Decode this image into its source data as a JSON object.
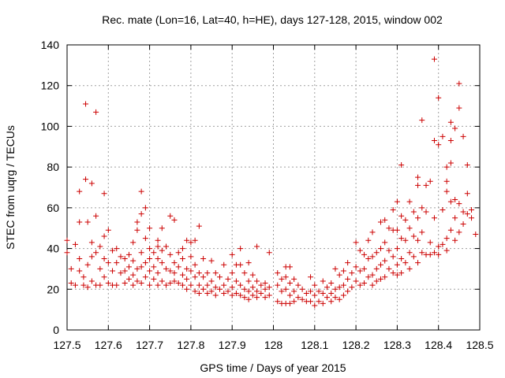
{
  "chart_data": {
    "type": "scatter",
    "title": "Rec. mate (Lon=16, Lat=40, h=HE), days 127-128, 2015, window 002",
    "xlabel": "GPS time / Days of year 2015",
    "ylabel": "STEC from uqrg / TECUs",
    "xlim": [
      127.5,
      128.5
    ],
    "ylim": [
      0,
      140
    ],
    "xticks": [
      127.5,
      127.6,
      127.7,
      127.8,
      127.9,
      128.0,
      128.1,
      128.2,
      128.3,
      128.4,
      128.5
    ],
    "xtick_labels": [
      "127.5",
      "127.6",
      "127.7",
      "127.8",
      "127.9",
      "128",
      "128.1",
      "128.2",
      "128.3",
      "128.4",
      "128.5"
    ],
    "yticks": [
      0,
      20,
      40,
      60,
      80,
      100,
      120,
      140
    ],
    "ytick_labels": [
      "0",
      "20",
      "40",
      "60",
      "80",
      "100",
      "120",
      "140"
    ],
    "grid": true,
    "marker": "+",
    "color": "#cc0000",
    "points": [
      [
        127.5,
        44
      ],
      [
        127.5,
        38
      ],
      [
        127.51,
        23
      ],
      [
        127.51,
        30
      ],
      [
        127.52,
        42
      ],
      [
        127.52,
        22
      ],
      [
        127.53,
        68
      ],
      [
        127.53,
        53
      ],
      [
        127.53,
        35
      ],
      [
        127.53,
        29
      ],
      [
        127.54,
        22
      ],
      [
        127.54,
        26
      ],
      [
        127.545,
        111
      ],
      [
        127.545,
        74
      ],
      [
        127.55,
        53
      ],
      [
        127.55,
        32
      ],
      [
        127.55,
        21
      ],
      [
        127.56,
        72
      ],
      [
        127.56,
        43
      ],
      [
        127.56,
        36
      ],
      [
        127.56,
        24
      ],
      [
        127.57,
        107
      ],
      [
        127.57,
        56
      ],
      [
        127.57,
        38
      ],
      [
        127.57,
        22
      ],
      [
        127.58,
        41
      ],
      [
        127.58,
        30
      ],
      [
        127.58,
        22
      ],
      [
        127.59,
        67
      ],
      [
        127.59,
        46
      ],
      [
        127.59,
        35
      ],
      [
        127.59,
        26
      ],
      [
        127.6,
        49
      ],
      [
        127.6,
        33
      ],
      [
        127.6,
        23
      ],
      [
        127.61,
        39
      ],
      [
        127.61,
        29
      ],
      [
        127.61,
        22
      ],
      [
        127.62,
        40
      ],
      [
        127.62,
        33
      ],
      [
        127.62,
        22
      ],
      [
        127.63,
        36
      ],
      [
        127.63,
        28
      ],
      [
        127.64,
        35
      ],
      [
        127.64,
        29
      ],
      [
        127.64,
        23
      ],
      [
        127.65,
        37
      ],
      [
        127.65,
        31
      ],
      [
        127.65,
        25
      ],
      [
        127.66,
        43
      ],
      [
        127.66,
        34
      ],
      [
        127.66,
        27
      ],
      [
        127.66,
        22
      ],
      [
        127.67,
        53
      ],
      [
        127.67,
        49
      ],
      [
        127.67,
        30
      ],
      [
        127.67,
        24
      ],
      [
        127.68,
        68
      ],
      [
        127.68,
        57
      ],
      [
        127.68,
        38
      ],
      [
        127.68,
        31
      ],
      [
        127.68,
        23
      ],
      [
        127.69,
        60
      ],
      [
        127.69,
        45
      ],
      [
        127.69,
        33
      ],
      [
        127.69,
        26
      ],
      [
        127.7,
        50
      ],
      [
        127.7,
        40
      ],
      [
        127.7,
        35
      ],
      [
        127.7,
        29
      ],
      [
        127.7,
        22
      ],
      [
        127.71,
        38
      ],
      [
        127.71,
        31
      ],
      [
        127.71,
        25
      ],
      [
        127.72,
        44
      ],
      [
        127.72,
        41
      ],
      [
        127.72,
        35
      ],
      [
        127.72,
        28
      ],
      [
        127.72,
        22
      ],
      [
        127.73,
        50
      ],
      [
        127.73,
        39
      ],
      [
        127.73,
        33
      ],
      [
        127.73,
        24
      ],
      [
        127.74,
        41
      ],
      [
        127.74,
        30
      ],
      [
        127.74,
        22
      ],
      [
        127.75,
        56
      ],
      [
        127.75,
        37
      ],
      [
        127.75,
        29
      ],
      [
        127.75,
        23
      ],
      [
        127.76,
        54
      ],
      [
        127.76,
        33
      ],
      [
        127.76,
        28
      ],
      [
        127.76,
        24
      ],
      [
        127.77,
        38
      ],
      [
        127.77,
        31
      ],
      [
        127.77,
        23
      ],
      [
        127.78,
        40
      ],
      [
        127.78,
        35
      ],
      [
        127.78,
        27
      ],
      [
        127.78,
        22
      ],
      [
        127.79,
        44
      ],
      [
        127.79,
        30
      ],
      [
        127.79,
        25
      ],
      [
        127.79,
        20
      ],
      [
        127.8,
        43
      ],
      [
        127.8,
        36
      ],
      [
        127.8,
        29
      ],
      [
        127.8,
        22
      ],
      [
        127.81,
        44
      ],
      [
        127.81,
        32
      ],
      [
        127.81,
        26
      ],
      [
        127.81,
        19
      ],
      [
        127.82,
        51
      ],
      [
        127.82,
        28
      ],
      [
        127.82,
        22
      ],
      [
        127.82,
        18
      ],
      [
        127.83,
        35
      ],
      [
        127.83,
        26
      ],
      [
        127.83,
        20
      ],
      [
        127.84,
        28
      ],
      [
        127.84,
        22
      ],
      [
        127.84,
        18
      ],
      [
        127.85,
        34
      ],
      [
        127.85,
        24
      ],
      [
        127.85,
        19
      ],
      [
        127.86,
        28
      ],
      [
        127.86,
        21
      ],
      [
        127.86,
        17
      ],
      [
        127.87,
        26
      ],
      [
        127.87,
        20
      ],
      [
        127.88,
        32
      ],
      [
        127.88,
        22
      ],
      [
        127.88,
        18
      ],
      [
        127.89,
        25
      ],
      [
        127.89,
        19
      ],
      [
        127.9,
        37
      ],
      [
        127.9,
        28
      ],
      [
        127.9,
        21
      ],
      [
        127.9,
        17
      ],
      [
        127.91,
        32
      ],
      [
        127.91,
        24
      ],
      [
        127.91,
        18
      ],
      [
        127.92,
        40
      ],
      [
        127.92,
        32
      ],
      [
        127.92,
        22
      ],
      [
        127.92,
        17
      ],
      [
        127.93,
        28
      ],
      [
        127.93,
        20
      ],
      [
        127.93,
        16
      ],
      [
        127.94,
        33
      ],
      [
        127.94,
        24
      ],
      [
        127.94,
        19
      ],
      [
        127.94,
        15
      ],
      [
        127.95,
        27
      ],
      [
        127.95,
        21
      ],
      [
        127.95,
        17
      ],
      [
        127.96,
        41
      ],
      [
        127.96,
        24
      ],
      [
        127.96,
        19
      ],
      [
        127.96,
        16
      ],
      [
        127.97,
        22
      ],
      [
        127.97,
        18
      ],
      [
        127.98,
        23
      ],
      [
        127.98,
        20
      ],
      [
        127.98,
        16
      ],
      [
        127.99,
        38
      ],
      [
        127.99,
        21
      ],
      [
        127.99,
        17
      ],
      [
        128.01,
        28
      ],
      [
        128.01,
        22
      ],
      [
        128.01,
        14
      ],
      [
        128.02,
        25
      ],
      [
        128.02,
        19
      ],
      [
        128.02,
        13
      ],
      [
        128.03,
        31
      ],
      [
        128.03,
        26
      ],
      [
        128.03,
        20
      ],
      [
        128.03,
        13
      ],
      [
        128.04,
        31
      ],
      [
        128.04,
        23
      ],
      [
        128.04,
        17
      ],
      [
        128.04,
        13
      ],
      [
        128.05,
        25
      ],
      [
        128.05,
        19
      ],
      [
        128.05,
        14
      ],
      [
        128.06,
        22
      ],
      [
        128.06,
        16
      ],
      [
        128.07,
        20
      ],
      [
        128.07,
        15
      ],
      [
        128.08,
        18
      ],
      [
        128.08,
        14
      ],
      [
        128.09,
        26
      ],
      [
        128.09,
        19
      ],
      [
        128.09,
        14
      ],
      [
        128.1,
        22
      ],
      [
        128.1,
        17
      ],
      [
        128.1,
        12
      ],
      [
        128.11,
        19
      ],
      [
        128.11,
        14
      ],
      [
        128.12,
        24
      ],
      [
        128.12,
        18
      ],
      [
        128.12,
        13
      ],
      [
        128.13,
        21
      ],
      [
        128.13,
        16
      ],
      [
        128.14,
        23
      ],
      [
        128.14,
        18
      ],
      [
        128.14,
        14
      ],
      [
        128.15,
        30
      ],
      [
        128.15,
        20
      ],
      [
        128.15,
        16
      ],
      [
        128.16,
        27
      ],
      [
        128.16,
        21
      ],
      [
        128.16,
        15
      ],
      [
        128.17,
        29
      ],
      [
        128.17,
        22
      ],
      [
        128.17,
        17
      ],
      [
        128.18,
        33
      ],
      [
        128.18,
        25
      ],
      [
        128.18,
        19
      ],
      [
        128.19,
        28
      ],
      [
        128.19,
        21
      ],
      [
        128.2,
        43
      ],
      [
        128.2,
        31
      ],
      [
        128.2,
        24
      ],
      [
        128.21,
        39
      ],
      [
        128.21,
        29
      ],
      [
        128.21,
        22
      ],
      [
        128.22,
        37
      ],
      [
        128.22,
        30
      ],
      [
        128.22,
        23
      ],
      [
        128.23,
        44
      ],
      [
        128.23,
        35
      ],
      [
        128.23,
        26
      ],
      [
        128.24,
        48
      ],
      [
        128.24,
        36
      ],
      [
        128.24,
        27
      ],
      [
        128.24,
        22
      ],
      [
        128.25,
        38
      ],
      [
        128.25,
        30
      ],
      [
        128.25,
        24
      ],
      [
        128.26,
        53
      ],
      [
        128.26,
        40
      ],
      [
        128.26,
        32
      ],
      [
        128.26,
        25
      ],
      [
        128.27,
        54
      ],
      [
        128.27,
        43
      ],
      [
        128.27,
        34
      ],
      [
        128.27,
        26
      ],
      [
        128.28,
        50
      ],
      [
        128.28,
        39
      ],
      [
        128.28,
        30
      ],
      [
        128.29,
        59
      ],
      [
        128.29,
        49
      ],
      [
        128.29,
        36
      ],
      [
        128.29,
        28
      ],
      [
        128.3,
        63
      ],
      [
        128.3,
        49
      ],
      [
        128.3,
        40
      ],
      [
        128.3,
        32
      ],
      [
        128.3,
        27
      ],
      [
        128.31,
        81
      ],
      [
        128.31,
        56
      ],
      [
        128.31,
        45
      ],
      [
        128.31,
        35
      ],
      [
        128.31,
        28
      ],
      [
        128.32,
        54
      ],
      [
        128.32,
        44
      ],
      [
        128.32,
        33
      ],
      [
        128.33,
        63
      ],
      [
        128.33,
        50
      ],
      [
        128.33,
        38
      ],
      [
        128.33,
        30
      ],
      [
        128.34,
        58
      ],
      [
        128.34,
        46
      ],
      [
        128.34,
        36
      ],
      [
        128.35,
        75
      ],
      [
        128.35,
        71
      ],
      [
        128.35,
        55
      ],
      [
        128.35,
        44
      ],
      [
        128.35,
        33
      ],
      [
        128.36,
        103
      ],
      [
        128.36,
        60
      ],
      [
        128.36,
        48
      ],
      [
        128.36,
        38
      ],
      [
        128.37,
        71
      ],
      [
        128.37,
        58
      ],
      [
        128.37,
        37
      ],
      [
        128.38,
        73
      ],
      [
        128.38,
        43
      ],
      [
        128.38,
        37
      ],
      [
        128.39,
        133
      ],
      [
        128.39,
        93
      ],
      [
        128.39,
        55
      ],
      [
        128.39,
        38
      ],
      [
        128.4,
        114
      ],
      [
        128.4,
        91
      ],
      [
        128.4,
        41
      ],
      [
        128.4,
        37
      ],
      [
        128.41,
        95
      ],
      [
        128.41,
        59
      ],
      [
        128.41,
        42
      ],
      [
        128.42,
        80
      ],
      [
        128.42,
        73
      ],
      [
        128.42,
        68
      ],
      [
        128.42,
        45
      ],
      [
        128.42,
        39
      ],
      [
        128.43,
        102
      ],
      [
        128.43,
        93
      ],
      [
        128.43,
        82
      ],
      [
        128.43,
        63
      ],
      [
        128.43,
        49
      ],
      [
        128.44,
        99
      ],
      [
        128.44,
        64
      ],
      [
        128.44,
        55
      ],
      [
        128.44,
        44
      ],
      [
        128.45,
        121
      ],
      [
        128.45,
        109
      ],
      [
        128.45,
        62
      ],
      [
        128.45,
        48
      ],
      [
        128.46,
        95
      ],
      [
        128.46,
        58
      ],
      [
        128.46,
        52
      ],
      [
        128.47,
        81
      ],
      [
        128.47,
        67
      ],
      [
        128.47,
        57
      ],
      [
        128.48,
        59
      ],
      [
        128.48,
        55
      ],
      [
        128.49,
        47
      ]
    ]
  }
}
